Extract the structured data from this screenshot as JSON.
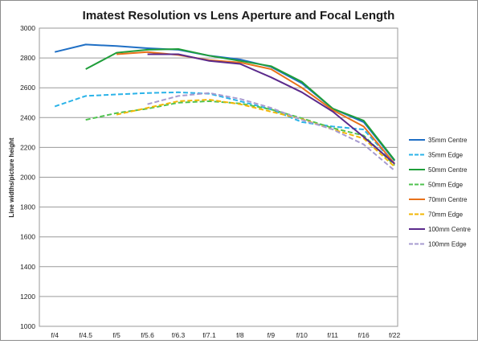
{
  "chart_data": {
    "type": "line",
    "title": "Imatest Resolution vs Lens Aperture and Focal Length",
    "xlabel": "",
    "ylabel": "Line widths/picture height",
    "categories": [
      "f/4",
      "f/4.5",
      "f/5",
      "f/5.6",
      "f/6.3",
      "f/7.1",
      "f/8",
      "f/9",
      "f/10",
      "f/11",
      "f/16",
      "f/22"
    ],
    "ylim": [
      1000,
      3000
    ],
    "yticks": [
      "1000",
      "1200",
      "1400",
      "1600",
      "1800",
      "2000",
      "2200",
      "2400",
      "2600",
      "2800",
      "3000"
    ],
    "grid": "horizontal",
    "legend_position": "right",
    "series": [
      {
        "name": "35mm Centre",
        "color": "#1f6fc5",
        "dash": "solid",
        "values": [
          2840,
          2890,
          2880,
          2865,
          2855,
          2815,
          2790,
          2740,
          2630,
          2460,
          2370,
          2110
        ]
      },
      {
        "name": "35mm Edge",
        "color": "#2bb3e8",
        "dash": "dashed",
        "values": [
          2475,
          2545,
          2555,
          2565,
          2570,
          2560,
          2510,
          2455,
          2370,
          2340,
          2320,
          2090
        ]
      },
      {
        "name": "50mm Centre",
        "color": "#1f9e3a",
        "dash": "solid",
        "values": [
          null,
          2725,
          2835,
          2855,
          2860,
          2815,
          2780,
          2745,
          2640,
          2460,
          2380,
          2115
        ]
      },
      {
        "name": "50mm Edge",
        "color": "#4fc24f",
        "dash": "dashed",
        "values": [
          null,
          2385,
          2430,
          2460,
          2500,
          2510,
          2495,
          2455,
          2395,
          2330,
          2280,
          2080
        ]
      },
      {
        "name": "70mm Centre",
        "color": "#e8711a",
        "dash": "solid",
        "values": [
          null,
          null,
          2825,
          2840,
          2820,
          2785,
          2770,
          2725,
          2600,
          2450,
          2340,
          2090
        ]
      },
      {
        "name": "70mm Edge",
        "color": "#f2b705",
        "dash": "dashed",
        "values": [
          null,
          null,
          2420,
          2465,
          2510,
          2520,
          2490,
          2440,
          2390,
          2320,
          2260,
          2070
        ]
      },
      {
        "name": "100mm Centre",
        "color": "#5b2a8c",
        "dash": "solid",
        "values": [
          null,
          null,
          null,
          2825,
          2825,
          2780,
          2760,
          2670,
          2570,
          2440,
          2270,
          2090
        ]
      },
      {
        "name": "100mm Edge",
        "color": "#a79bd0",
        "dash": "dashed",
        "values": [
          null,
          null,
          null,
          2490,
          2545,
          2565,
          2525,
          2465,
          2385,
          2320,
          2220,
          2045
        ]
      }
    ]
  }
}
